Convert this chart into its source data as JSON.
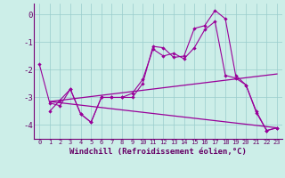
{
  "xlabel": "Windchill (Refroidissement éolien,°C)",
  "background_color": "#cceee8",
  "line_color": "#990099",
  "xlim": [
    -0.5,
    23.5
  ],
  "ylim": [
    -4.5,
    0.4
  ],
  "yticks": [
    0,
    -1,
    -2,
    -3,
    -4
  ],
  "xticks": [
    0,
    1,
    2,
    3,
    4,
    5,
    6,
    7,
    8,
    9,
    10,
    11,
    12,
    13,
    14,
    15,
    16,
    17,
    18,
    19,
    20,
    21,
    22,
    23
  ],
  "series1_x": [
    0,
    1,
    2,
    3,
    4,
    5,
    6,
    7,
    8,
    9,
    10,
    11,
    12,
    13,
    14,
    15,
    16,
    17,
    18,
    19,
    20,
    21,
    22,
    23
  ],
  "series1_y": [
    -1.8,
    -3.2,
    -3.3,
    -2.7,
    -3.6,
    -3.9,
    -3.0,
    -3.0,
    -3.0,
    -3.0,
    -2.5,
    -1.15,
    -1.2,
    -1.55,
    -1.5,
    -0.5,
    -0.4,
    0.15,
    -0.15,
    -2.2,
    -2.55,
    -3.5,
    -4.2,
    -4.1
  ],
  "series2_x": [
    1,
    2,
    3,
    4,
    5,
    6,
    7,
    8,
    9,
    10,
    11,
    12,
    13,
    14,
    15,
    16,
    17,
    18,
    19,
    20,
    21,
    22,
    23
  ],
  "series2_y": [
    -3.5,
    -3.1,
    -2.7,
    -3.6,
    -3.9,
    -3.0,
    -3.0,
    -3.0,
    -2.85,
    -2.35,
    -1.25,
    -1.5,
    -1.4,
    -1.6,
    -1.2,
    -0.55,
    -0.25,
    -2.2,
    -2.3,
    -2.55,
    -3.55,
    -4.2,
    -4.1
  ],
  "series3_x": [
    1,
    23
  ],
  "series3_y": [
    -3.15,
    -2.15
  ],
  "series4_x": [
    1,
    23
  ],
  "series4_y": [
    -3.15,
    -4.1
  ]
}
